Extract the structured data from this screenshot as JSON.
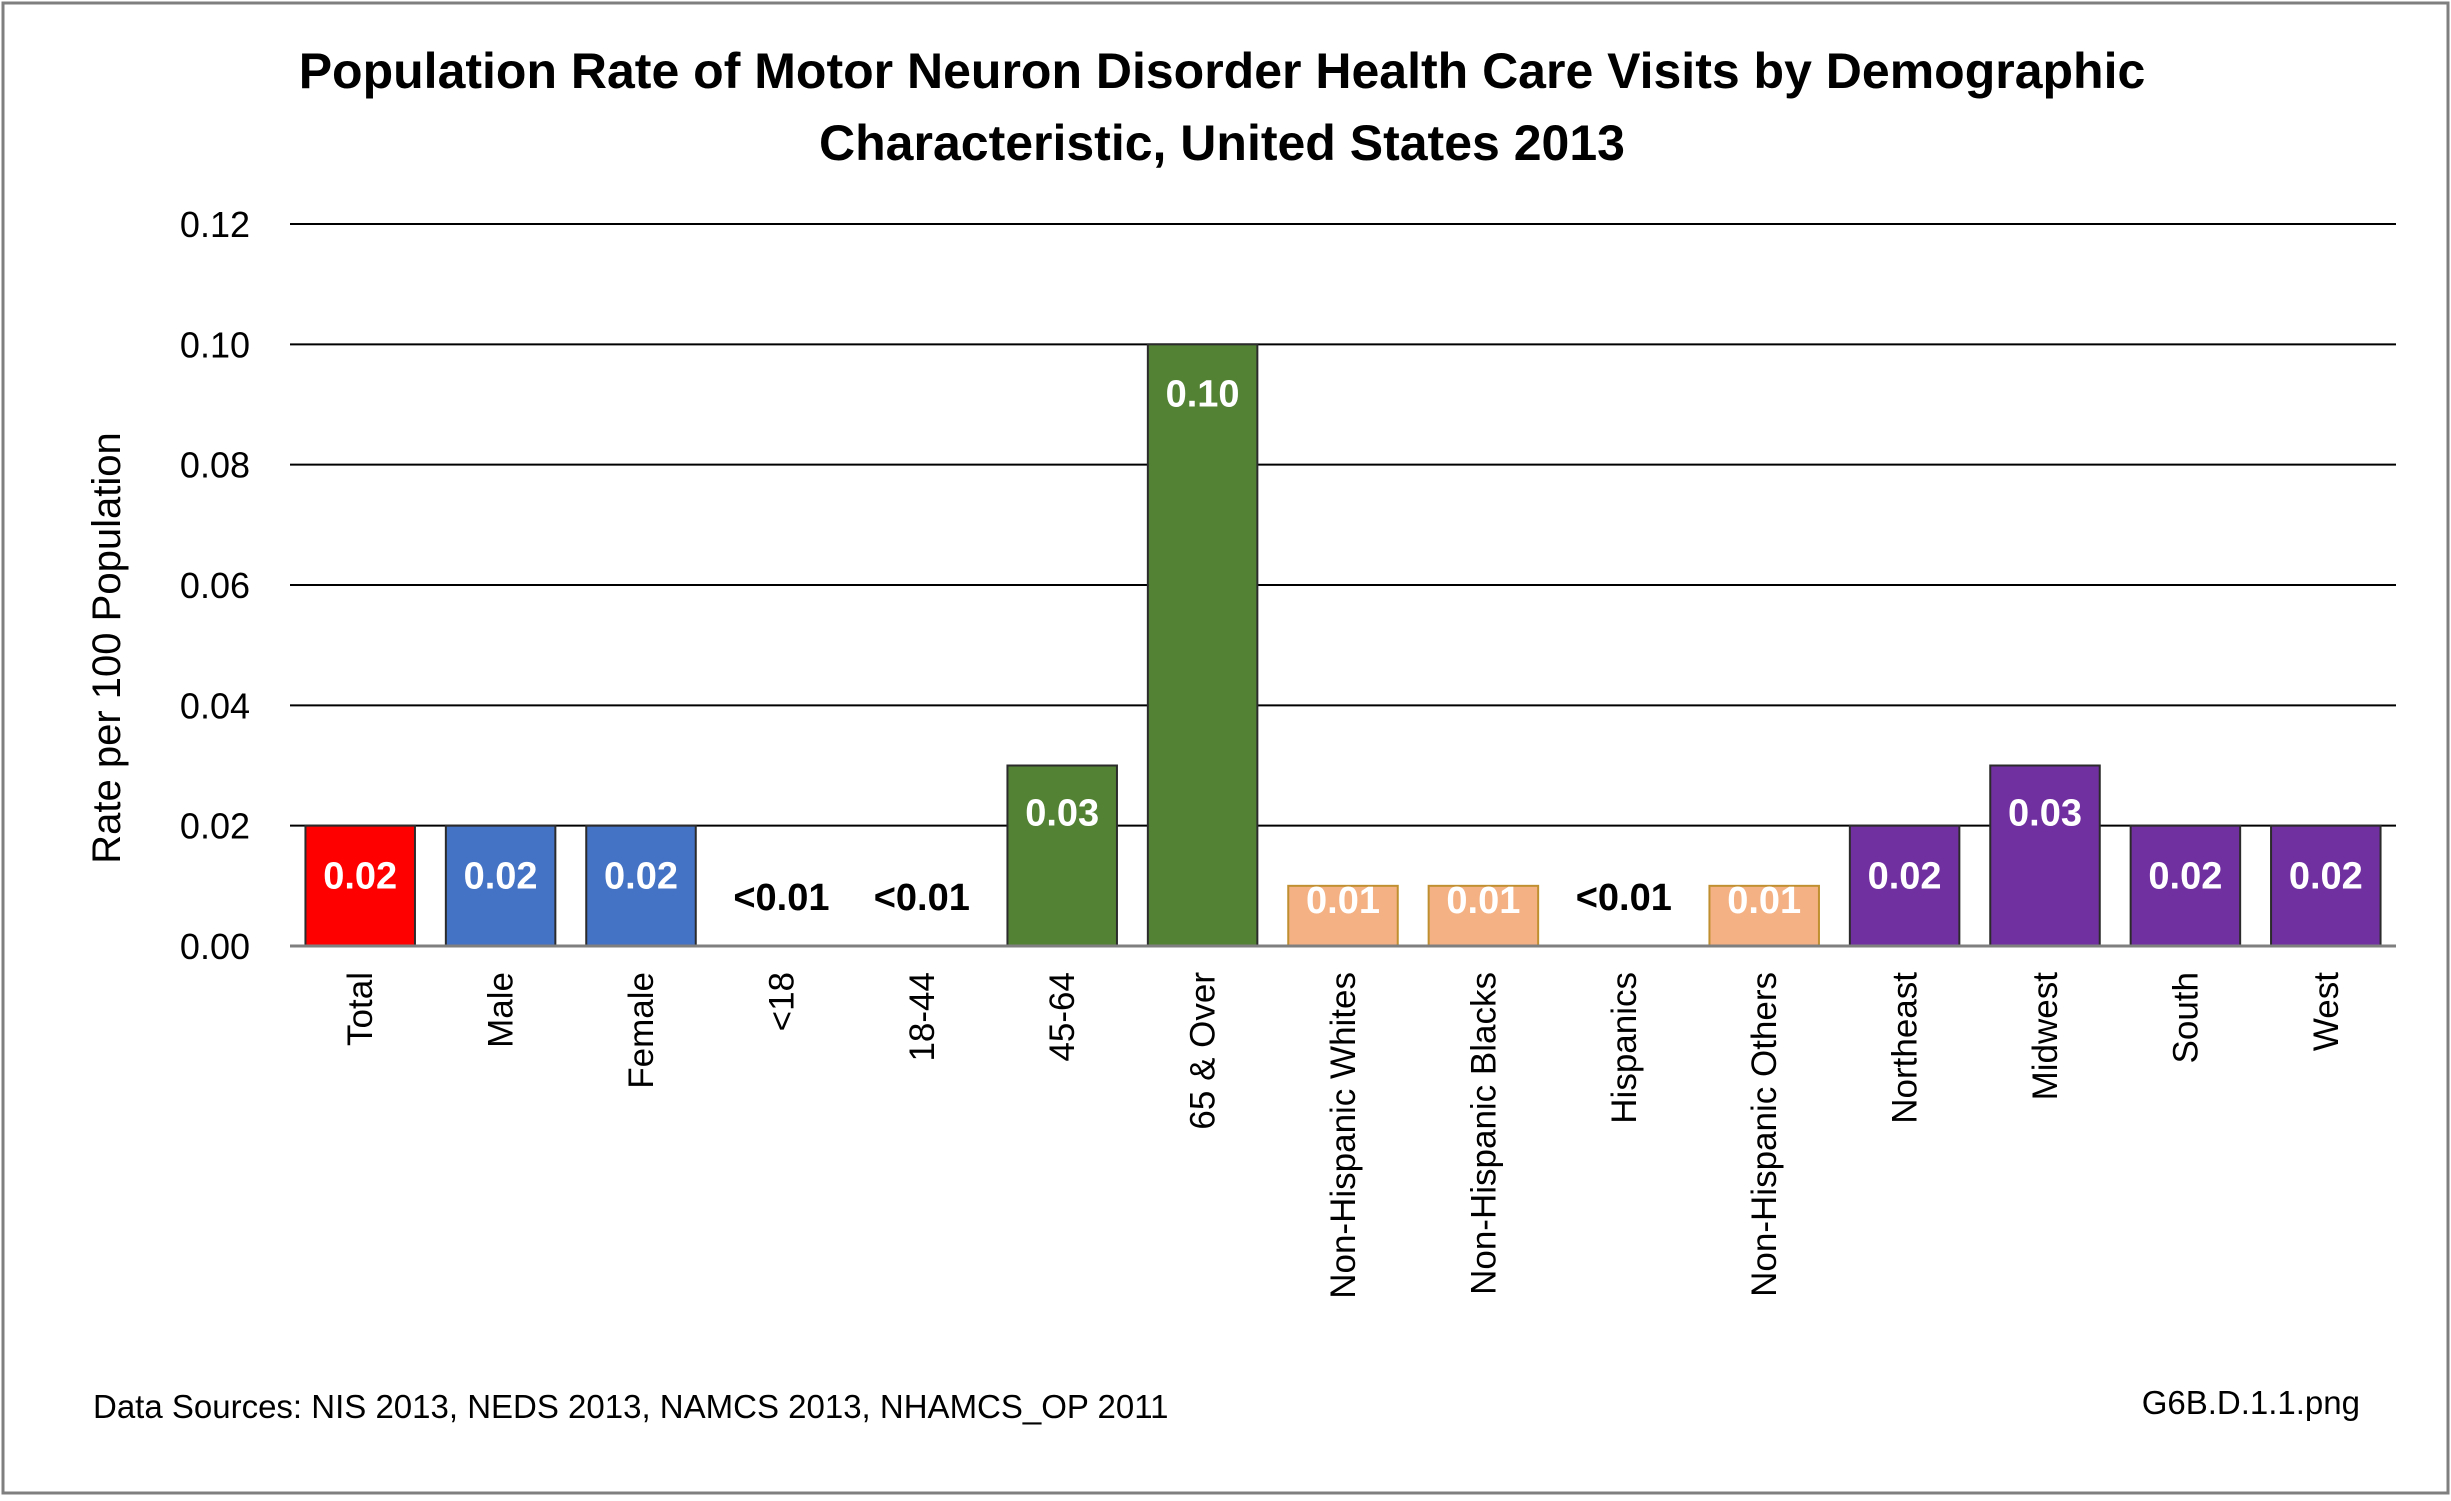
{
  "chart_data": {
    "type": "bar",
    "title_lines": [
      "Population Rate of Motor Neuron Disorder Health Care Visits by Demographic",
      "Characteristic, United States 2013"
    ],
    "ylabel": "Rate per 100 Population",
    "xlabel": "",
    "ylim": [
      0,
      0.12
    ],
    "yticks": [
      "0.00",
      "0.02",
      "0.04",
      "0.06",
      "0.08",
      "0.10",
      "0.12"
    ],
    "grid": true,
    "legend": "none",
    "categories": [
      "Total",
      "Male",
      "Female",
      "<18",
      "18-44",
      "45-64",
      "65 & Over",
      "Non-Hispanic Whites",
      "Non-Hispanic Blacks",
      "Hispanics",
      "Non-Hispanic Others",
      "Northeast",
      "Midwest",
      "South",
      "West"
    ],
    "values": [
      0.02,
      0.02,
      0.02,
      0,
      0,
      0.03,
      0.1,
      0.01,
      0.01,
      0,
      0.01,
      0.02,
      0.03,
      0.02,
      0.02
    ],
    "data_labels": [
      "0.02",
      "0.02",
      "0.02",
      "<0.01",
      "<0.01",
      "0.03",
      "0.10",
      "0.01",
      "0.01",
      "<0.01",
      "0.01",
      "0.02",
      "0.03",
      "0.02",
      "0.02"
    ],
    "colors": [
      "#FF0000",
      "#4472C4",
      "#4472C4",
      "#4472C4",
      "#4472C4",
      "#548235",
      "#548235",
      "#F4B183",
      "#F4B183",
      "#F4B183",
      "#F4B183",
      "#7030A0",
      "#7030A0",
      "#7030A0",
      "#7030A0"
    ],
    "footnote_left": "Data Sources: NIS 2013, NEDS 2013, NAMCS 2013, NHAMCS_OP 2011",
    "footnote_right": "G6B.D.1.1.png"
  }
}
